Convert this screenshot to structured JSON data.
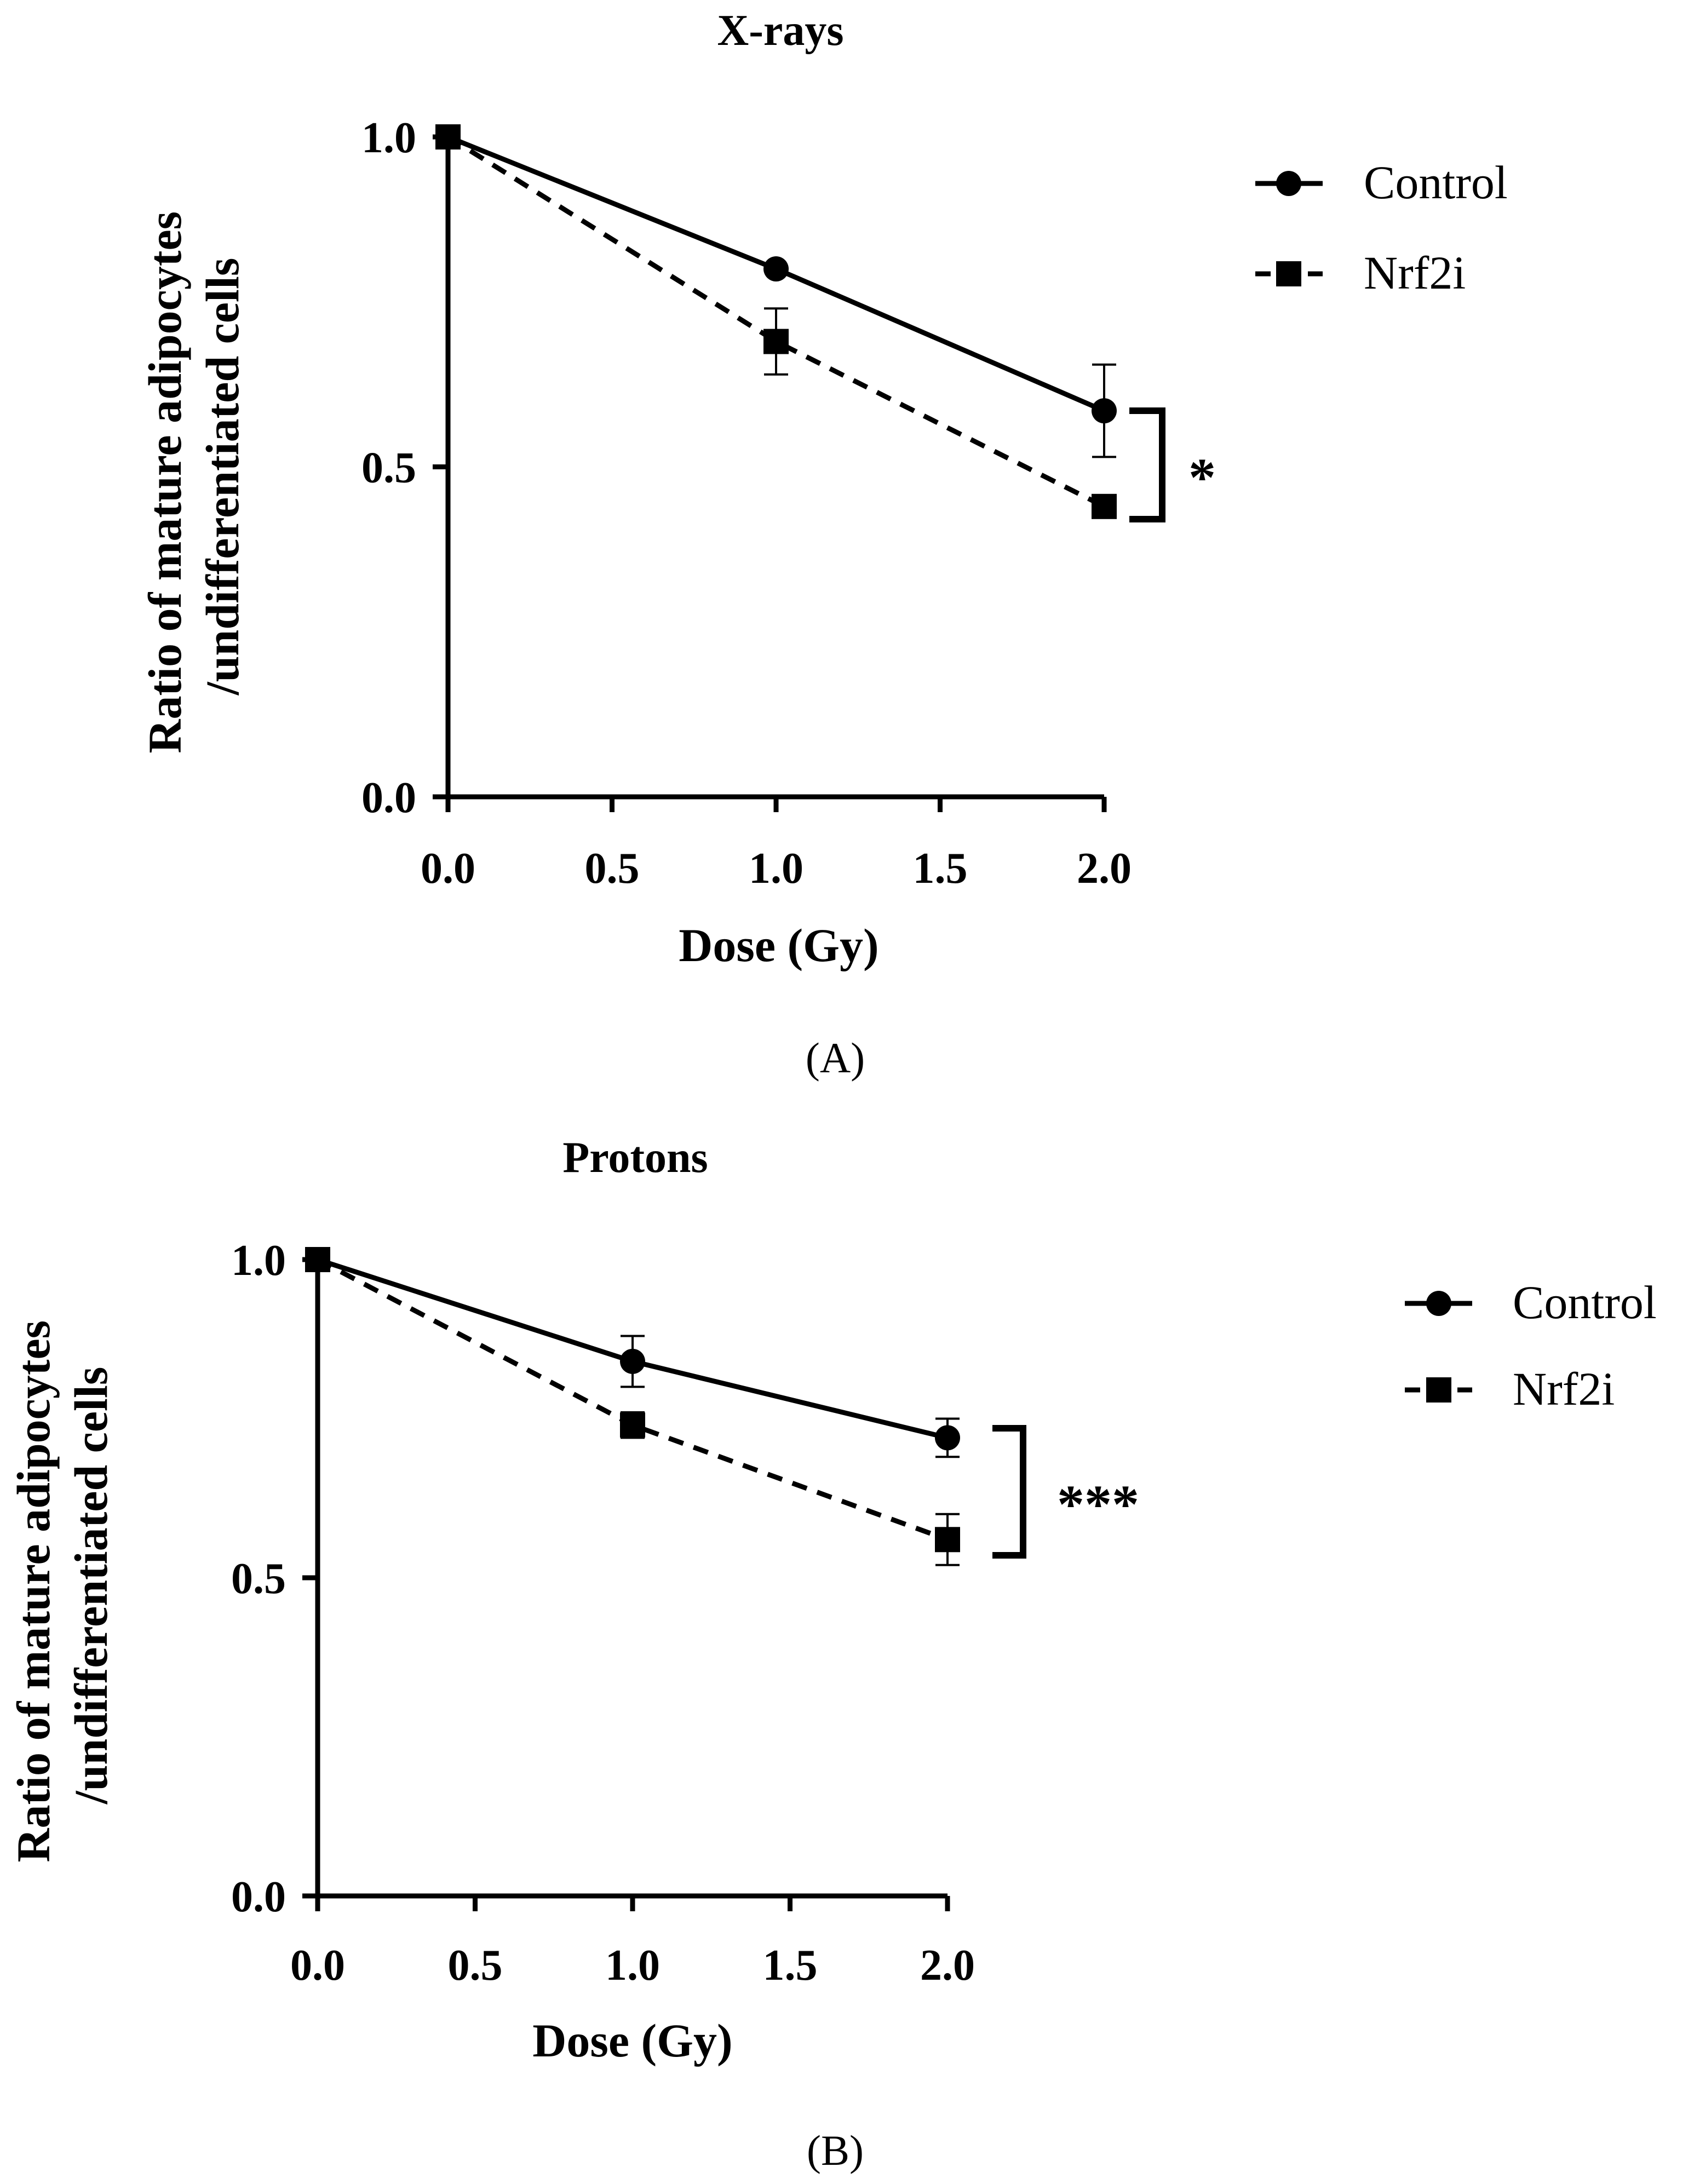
{
  "chart_data": [
    {
      "type": "line",
      "panel_label": "(A)",
      "title": "X-rays",
      "xlabel": "Dose (Gy)",
      "ylabel_lines": [
        "Ratio of mature adipocytes",
        "/undifferentiated cells"
      ],
      "xlim": [
        0,
        2
      ],
      "ylim": [
        0,
        1
      ],
      "xticks": [
        0,
        0.5,
        1,
        1.5,
        2
      ],
      "xtick_labels": [
        "0.0",
        "0.5",
        "1.0",
        "1.5",
        "2.0"
      ],
      "yticks": [
        0,
        0.5,
        1
      ],
      "ytick_labels": [
        "0.0",
        "0.5",
        "1.0"
      ],
      "series": [
        {
          "name": "Control",
          "marker": "circle",
          "line": "solid",
          "x": [
            0,
            1,
            2
          ],
          "y": [
            1.0,
            0.8,
            0.585
          ],
          "err": [
            0,
            0,
            0.07
          ]
        },
        {
          "name": "Nrf2i",
          "marker": "square",
          "line": "dashed",
          "x": [
            0,
            1,
            2
          ],
          "y": [
            1.0,
            0.69,
            0.44
          ],
          "err": [
            0,
            0.05,
            0
          ]
        }
      ],
      "significance": {
        "label": "*",
        "top": 0.585,
        "bottom": 0.44
      }
    },
    {
      "type": "line",
      "panel_label": "(B)",
      "title": "Protons",
      "xlabel": "Dose (Gy)",
      "ylabel_lines": [
        "Ratio of mature adipocytes",
        "/undifferentiated cells"
      ],
      "xlim": [
        0,
        2
      ],
      "ylim": [
        0,
        1
      ],
      "xticks": [
        0,
        0.5,
        1,
        1.5,
        2
      ],
      "xtick_labels": [
        "0.0",
        "0.5",
        "1.0",
        "1.5",
        "2.0"
      ],
      "yticks": [
        0,
        0.5,
        1
      ],
      "ytick_labels": [
        "0.0",
        "0.5",
        "1.0"
      ],
      "series": [
        {
          "name": "Control",
          "marker": "circle",
          "line": "solid",
          "x": [
            0,
            1,
            2
          ],
          "y": [
            1.0,
            0.84,
            0.72
          ],
          "err": [
            0,
            0.04,
            0.03
          ]
        },
        {
          "name": "Nrf2i",
          "marker": "square",
          "line": "dashed",
          "x": [
            0,
            1,
            2
          ],
          "y": [
            1.0,
            0.74,
            0.56
          ],
          "err": [
            0,
            0.02,
            0.04
          ]
        }
      ],
      "significance": {
        "label": "***",
        "top": 0.75,
        "bottom": 0.54
      }
    }
  ]
}
